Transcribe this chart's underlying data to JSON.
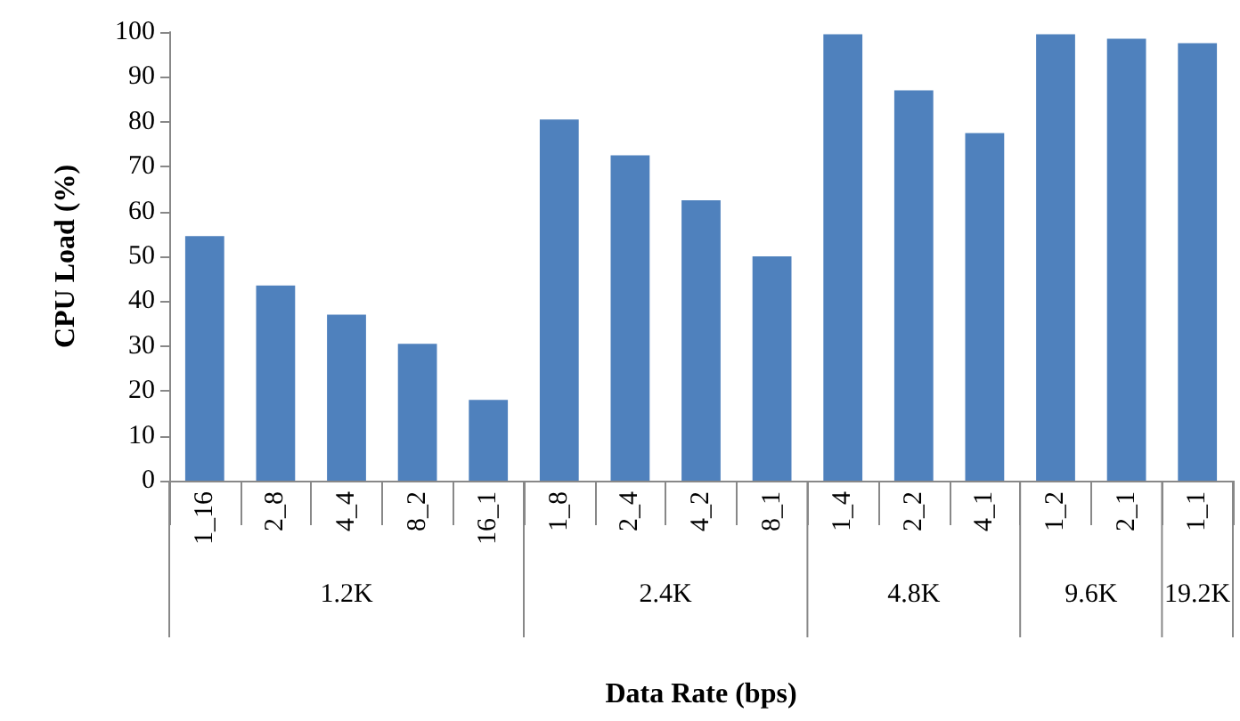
{
  "chart_data": {
    "type": "bar",
    "xlabel": "Data Rate (bps)",
    "ylabel": "CPU Load (%)",
    "categories": [
      "1_16",
      "2_8",
      "4_4",
      "8_2",
      "16_1",
      "1_8",
      "2_4",
      "4_2",
      "8_1",
      "1_4",
      "2_2",
      "4_1",
      "1_2",
      "2_1",
      "1_1"
    ],
    "values": [
      54.5,
      43.5,
      37,
      30.5,
      18,
      80.5,
      72.5,
      62.5,
      50,
      99.5,
      87,
      77.5,
      99.5,
      98.5,
      97.5
    ],
    "color": "#4f81bd",
    "ylim": [
      0,
      100
    ],
    "yticks": [
      0,
      10,
      20,
      30,
      40,
      50,
      60,
      70,
      80,
      90,
      100
    ],
    "grid": false,
    "annotations": [
      "1.2K",
      "2.4K",
      "4.8K",
      "9.6K",
      "19.2K"
    ]
  }
}
